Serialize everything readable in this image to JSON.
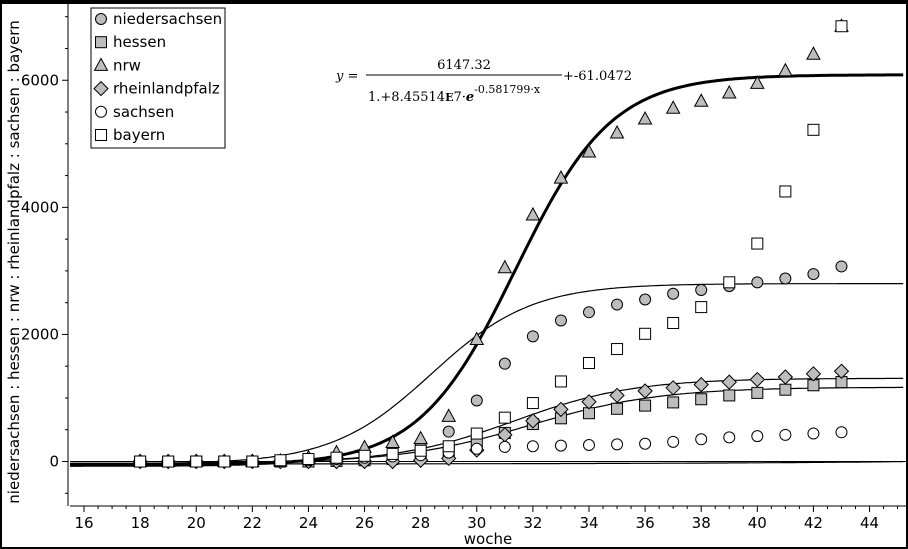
{
  "chart_data": {
    "type": "scatter",
    "xlabel": "woche",
    "ylabel": "niedersachsen : hessen : nrw : rheinlandpfalz : sachsen : bayern",
    "xlim": [
      15.5,
      45.3
    ],
    "ylim": [
      -700,
      7200
    ],
    "x_ticks": [
      16,
      18,
      20,
      22,
      24,
      26,
      28,
      30,
      32,
      34,
      36,
      38,
      40,
      42,
      44
    ],
    "y_ticks": [
      0,
      2000,
      4000,
      6000
    ],
    "legend_position": "top-left",
    "series": [
      {
        "name": "niedersachsen",
        "marker": "circle-filled",
        "x": [
          18,
          19,
          20,
          21,
          22,
          23,
          24,
          25,
          26,
          27,
          28,
          29,
          30,
          31,
          32,
          33,
          34,
          35,
          36,
          37,
          38,
          39,
          40,
          41,
          42,
          43
        ],
        "y": [
          0,
          0,
          0,
          0,
          0,
          0,
          10,
          30,
          60,
          120,
          240,
          470,
          960,
          1540,
          1970,
          2220,
          2350,
          2470,
          2550,
          2640,
          2700,
          2760,
          2820,
          2880,
          2950,
          3070
        ]
      },
      {
        "name": "hessen",
        "marker": "square-filled",
        "x": [
          18,
          19,
          20,
          21,
          22,
          23,
          24,
          25,
          26,
          27,
          28,
          29,
          30,
          31,
          32,
          33,
          34,
          35,
          36,
          37,
          38,
          39,
          40,
          41,
          42,
          43
        ],
        "y": [
          0,
          0,
          0,
          0,
          0,
          0,
          0,
          10,
          20,
          40,
          80,
          150,
          280,
          450,
          590,
          680,
          760,
          830,
          880,
          930,
          980,
          1040,
          1080,
          1130,
          1200,
          1250
        ]
      },
      {
        "name": "nrw",
        "marker": "triangle-filled",
        "x": [
          18,
          19,
          20,
          21,
          22,
          23,
          24,
          25,
          26,
          27,
          28,
          29,
          30,
          31,
          32,
          33,
          34,
          35,
          36,
          37,
          38,
          39,
          40,
          41,
          42,
          43
        ],
        "y": [
          0,
          0,
          0,
          0,
          0,
          10,
          60,
          140,
          220,
          300,
          360,
          710,
          1920,
          3050,
          3880,
          4460,
          4870,
          5170,
          5390,
          5560,
          5670,
          5800,
          5950,
          6150,
          6410,
          6850
        ]
      },
      {
        "name": "rheinlandpfalz",
        "marker": "diamond-filled",
        "x": [
          18,
          19,
          20,
          21,
          22,
          23,
          24,
          25,
          26,
          27,
          28,
          29,
          30,
          31,
          32,
          33,
          34,
          35,
          36,
          37,
          38,
          39,
          40,
          41,
          42,
          43
        ],
        "y": [
          0,
          0,
          0,
          0,
          0,
          0,
          0,
          0,
          0,
          0,
          20,
          50,
          180,
          420,
          640,
          820,
          940,
          1040,
          1110,
          1160,
          1210,
          1250,
          1290,
          1330,
          1380,
          1420
        ]
      },
      {
        "name": "sachsen",
        "marker": "circle-open",
        "x": [
          18,
          19,
          20,
          21,
          22,
          23,
          24,
          25,
          26,
          27,
          28,
          29,
          30,
          31,
          32,
          33,
          34,
          35,
          36,
          37,
          38,
          39,
          40,
          41,
          42,
          43
        ],
        "y": [
          0,
          0,
          0,
          0,
          0,
          10,
          20,
          40,
          60,
          80,
          100,
          140,
          200,
          230,
          240,
          250,
          260,
          270,
          280,
          310,
          350,
          380,
          400,
          420,
          440,
          460
        ]
      },
      {
        "name": "bayern",
        "marker": "square-open",
        "x": [
          18,
          19,
          20,
          21,
          22,
          23,
          24,
          25,
          26,
          27,
          28,
          29,
          30,
          31,
          32,
          33,
          34,
          35,
          36,
          37,
          38,
          39,
          40,
          41,
          42,
          43
        ],
        "y": [
          0,
          0,
          0,
          0,
          0,
          20,
          40,
          60,
          90,
          120,
          170,
          240,
          440,
          690,
          920,
          1260,
          1550,
          1770,
          2010,
          2180,
          2430,
          2820,
          3430,
          4250,
          5220,
          6850
        ]
      }
    ],
    "fit_curves": [
      {
        "series": "nrw",
        "a": 6147.32,
        "b": 84551400,
        "k": 0.581799,
        "c": -61.0472,
        "style": "thick"
      },
      {
        "series": "niedersachsen",
        "a": 2840,
        "b": 8000000,
        "k": 0.56,
        "c": -40,
        "style": "thin"
      },
      {
        "series": "rheinlandpfalz",
        "a": 1340,
        "b": 2500000,
        "k": 0.47,
        "c": -30,
        "style": "thin"
      },
      {
        "series": "hessen",
        "a": 1200,
        "b": 900000,
        "k": 0.43,
        "c": -30,
        "style": "thin"
      },
      {
        "series": "sachsen",
        "a": 900,
        "b": 8000,
        "k": 0.13,
        "c": -40,
        "style": "thin"
      }
    ],
    "equation": {
      "lhs": "y =",
      "numerator": "6147.32",
      "denominator_prefix": "1.+8.45514",
      "denominator_e": "E",
      "denominator_mid": "7·",
      "denominator_base": "e",
      "exponent": "-0.581799·x",
      "suffix": "+-61.0472"
    }
  }
}
